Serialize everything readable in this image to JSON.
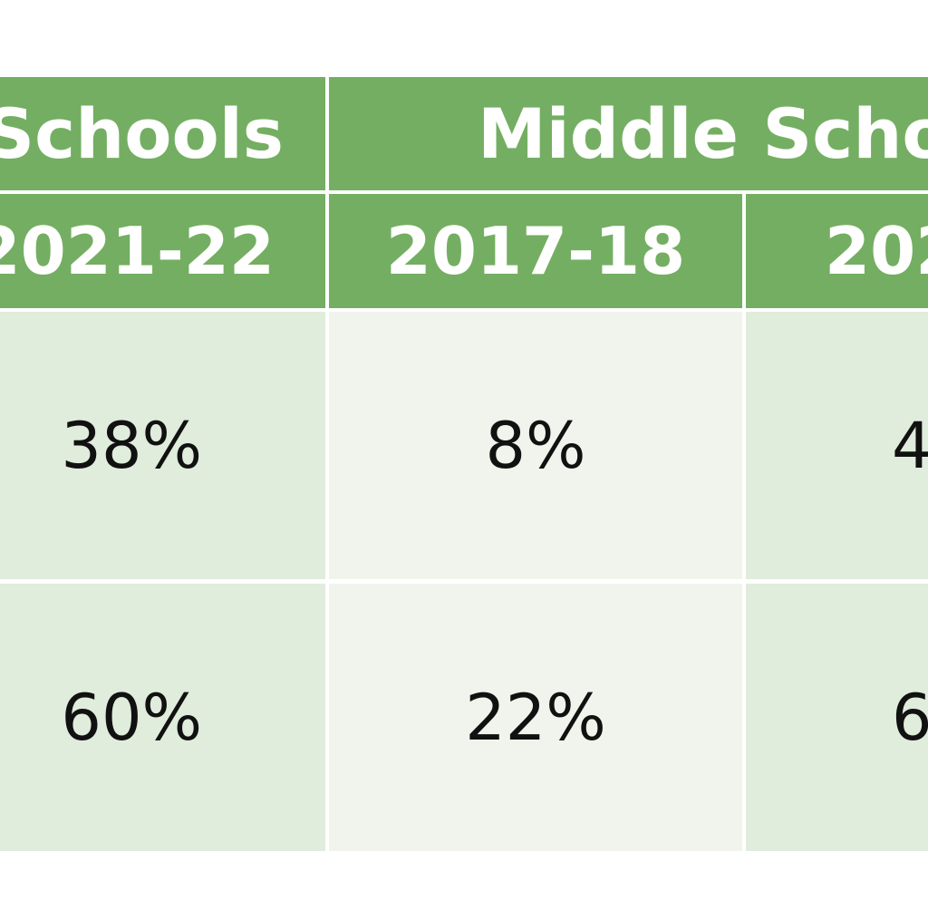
{
  "table": {
    "group_headers": [
      {
        "label": "Schools"
      },
      {
        "label": "Middle Scho"
      }
    ],
    "year_headers": [
      "2021-22",
      "2017-18",
      "202"
    ],
    "rows": [
      {
        "values": [
          "38%",
          "8%",
          "4"
        ]
      },
      {
        "values": [
          "60%",
          "22%",
          "6"
        ]
      }
    ]
  },
  "colors": {
    "header_bg": "#74ae62",
    "header_text": "#ffffff",
    "cell_dark": "#e0ecdc",
    "cell_light": "#f0f4ec",
    "data_text": "#111111"
  }
}
